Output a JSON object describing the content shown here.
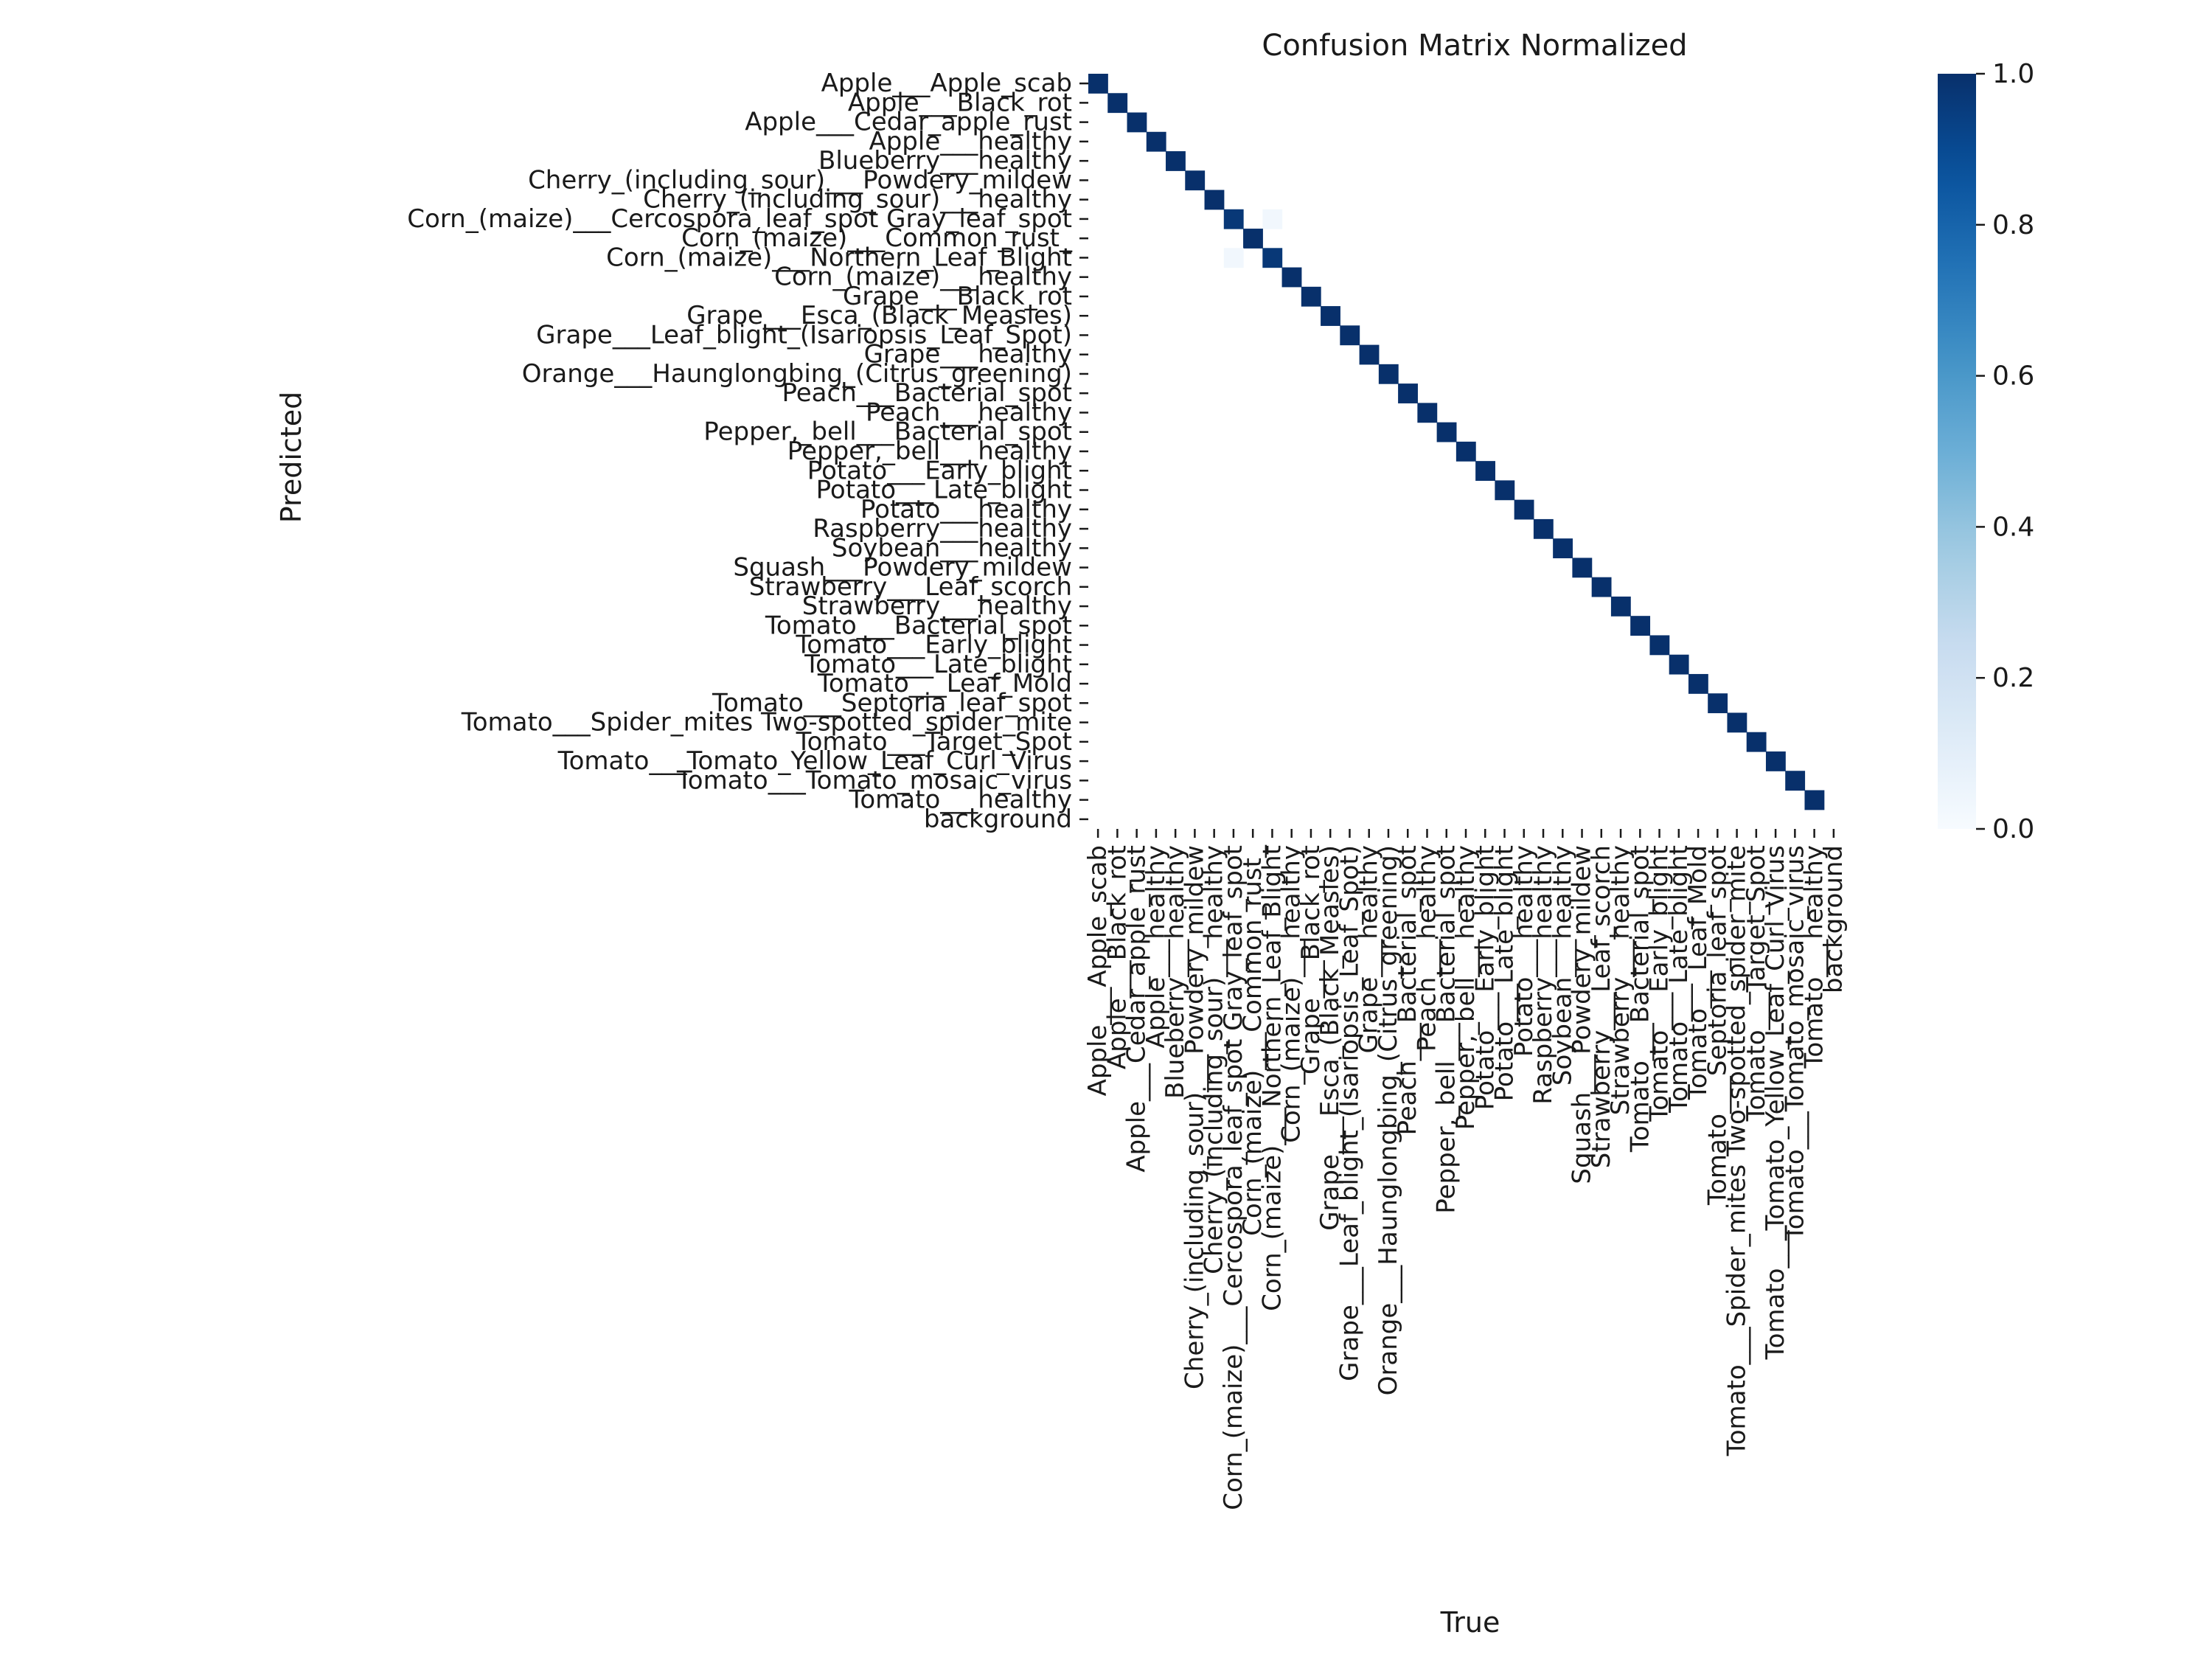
{
  "chart_data": {
    "type": "heatmap",
    "title": "Confusion Matrix Normalized",
    "xlabel": "True",
    "ylabel": "Predicted",
    "classes": [
      "Apple___Apple_scab",
      "Apple___Black_rot",
      "Apple___Cedar_apple_rust",
      "Apple___healthy",
      "Blueberry___healthy",
      "Cherry_(including_sour)___Powdery_mildew",
      "Cherry_(including_sour)___healthy",
      "Corn_(maize)___Cercospora_leaf_spot Gray_leaf_spot",
      "Corn_(maize)___Common_rust_",
      "Corn_(maize)___Northern_Leaf_Blight",
      "Corn_(maize)___healthy",
      "Grape___Black_rot",
      "Grape___Esca_(Black_Measles)",
      "Grape___Leaf_blight_(Isariopsis_Leaf_Spot)",
      "Grape___healthy",
      "Orange___Haunglongbing_(Citrus_greening)",
      "Peach___Bacterial_spot",
      "Peach___healthy",
      "Pepper,_bell___Bacterial_spot",
      "Pepper,_bell___healthy",
      "Potato___Early_blight",
      "Potato___Late_blight",
      "Potato___healthy",
      "Raspberry___healthy",
      "Soybean___healthy",
      "Squash___Powdery_mildew",
      "Strawberry___Leaf_scorch",
      "Strawberry___healthy",
      "Tomato___Bacterial_spot",
      "Tomato___Early_blight",
      "Tomato___Late_blight",
      "Tomato___Leaf_Mold",
      "Tomato___Septoria_leaf_spot",
      "Tomato___Spider_mites Two-spotted_spider_mite",
      "Tomato___Target_Spot",
      "Tomato___Tomato_Yellow_Leaf_Curl_Virus",
      "Tomato___Tomato_mosaic_virus",
      "Tomato___healthy",
      "background"
    ],
    "diagonal": [
      1,
      1,
      1,
      1,
      1,
      1,
      1,
      0.97,
      1,
      0.97,
      1,
      1,
      1,
      1,
      1,
      1,
      1,
      1,
      1,
      1,
      1,
      1,
      1,
      1,
      1,
      1,
      1,
      1,
      1,
      1,
      1,
      1,
      1,
      1,
      1,
      1,
      1,
      1,
      0
    ],
    "off_diagonal": [
      {
        "true": "Corn_(maize)___Northern_Leaf_Blight",
        "predicted": "Corn_(maize)___Cercospora_leaf_spot Gray_leaf_spot",
        "value": 0.03
      },
      {
        "true": "Corn_(maize)___Cercospora_leaf_spot Gray_leaf_spot",
        "predicted": "Corn_(maize)___Northern_Leaf_Blight",
        "value": 0.03
      }
    ],
    "colorbar": {
      "colormap": "Blues",
      "range": [
        0.0,
        1.0
      ],
      "ticks": [
        "0.0",
        "0.2",
        "0.4",
        "0.6",
        "0.8",
        "1.0"
      ]
    },
    "colors": {
      "low": "#f7fbff",
      "high": "#08306b"
    },
    "grid": false
  }
}
